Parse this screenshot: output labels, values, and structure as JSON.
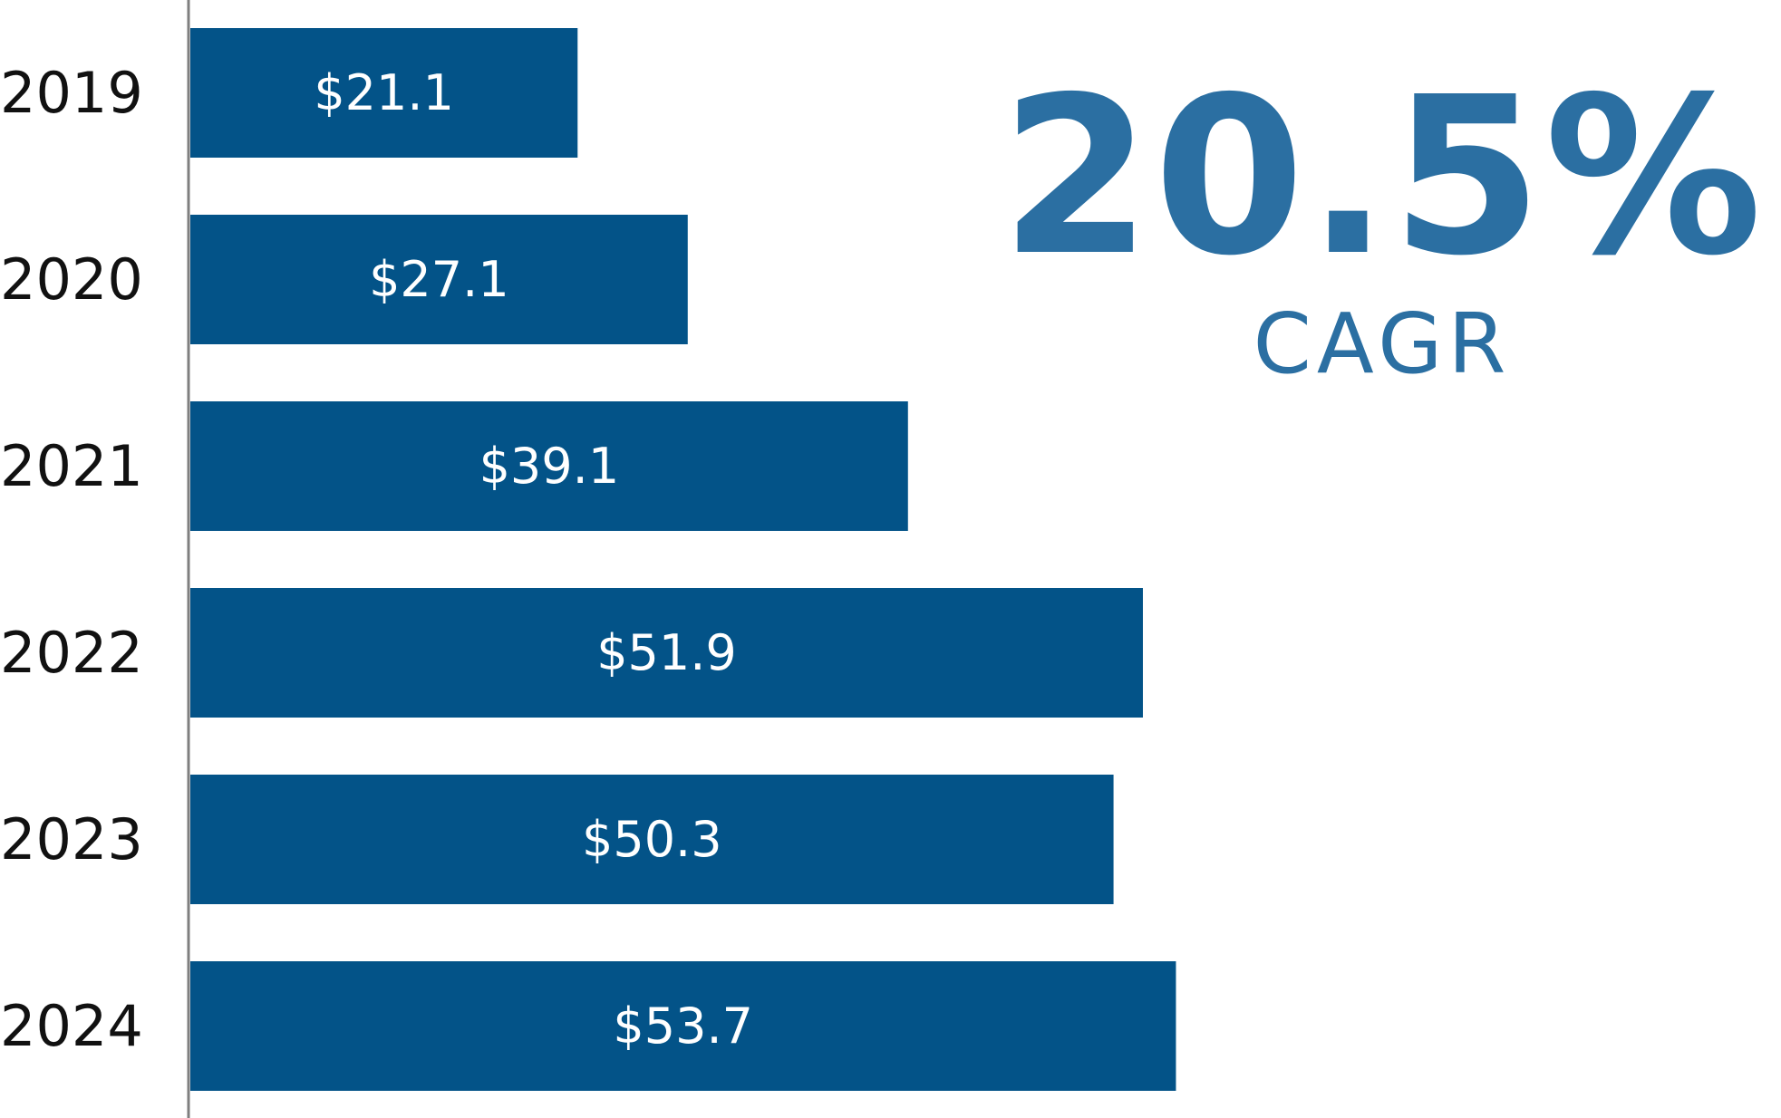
{
  "chart_data": {
    "type": "bar",
    "orientation": "horizontal",
    "categories": [
      "2019",
      "2020",
      "2021",
      "2022",
      "2023",
      "2024"
    ],
    "values": [
      21.1,
      27.1,
      39.1,
      51.9,
      50.3,
      53.7
    ],
    "value_labels": [
      "$21.1",
      "$27.1",
      "$39.1",
      "$51.9",
      "$50.3",
      "$53.7"
    ],
    "xlim": [
      0,
      54
    ],
    "grid": false,
    "legend": "none",
    "colors": {
      "bar": "#035388",
      "axis": "#7f7f7f",
      "kpi": "#2b6fa2"
    }
  },
  "kpi": {
    "value": "20.5%",
    "label": "CAGR"
  }
}
